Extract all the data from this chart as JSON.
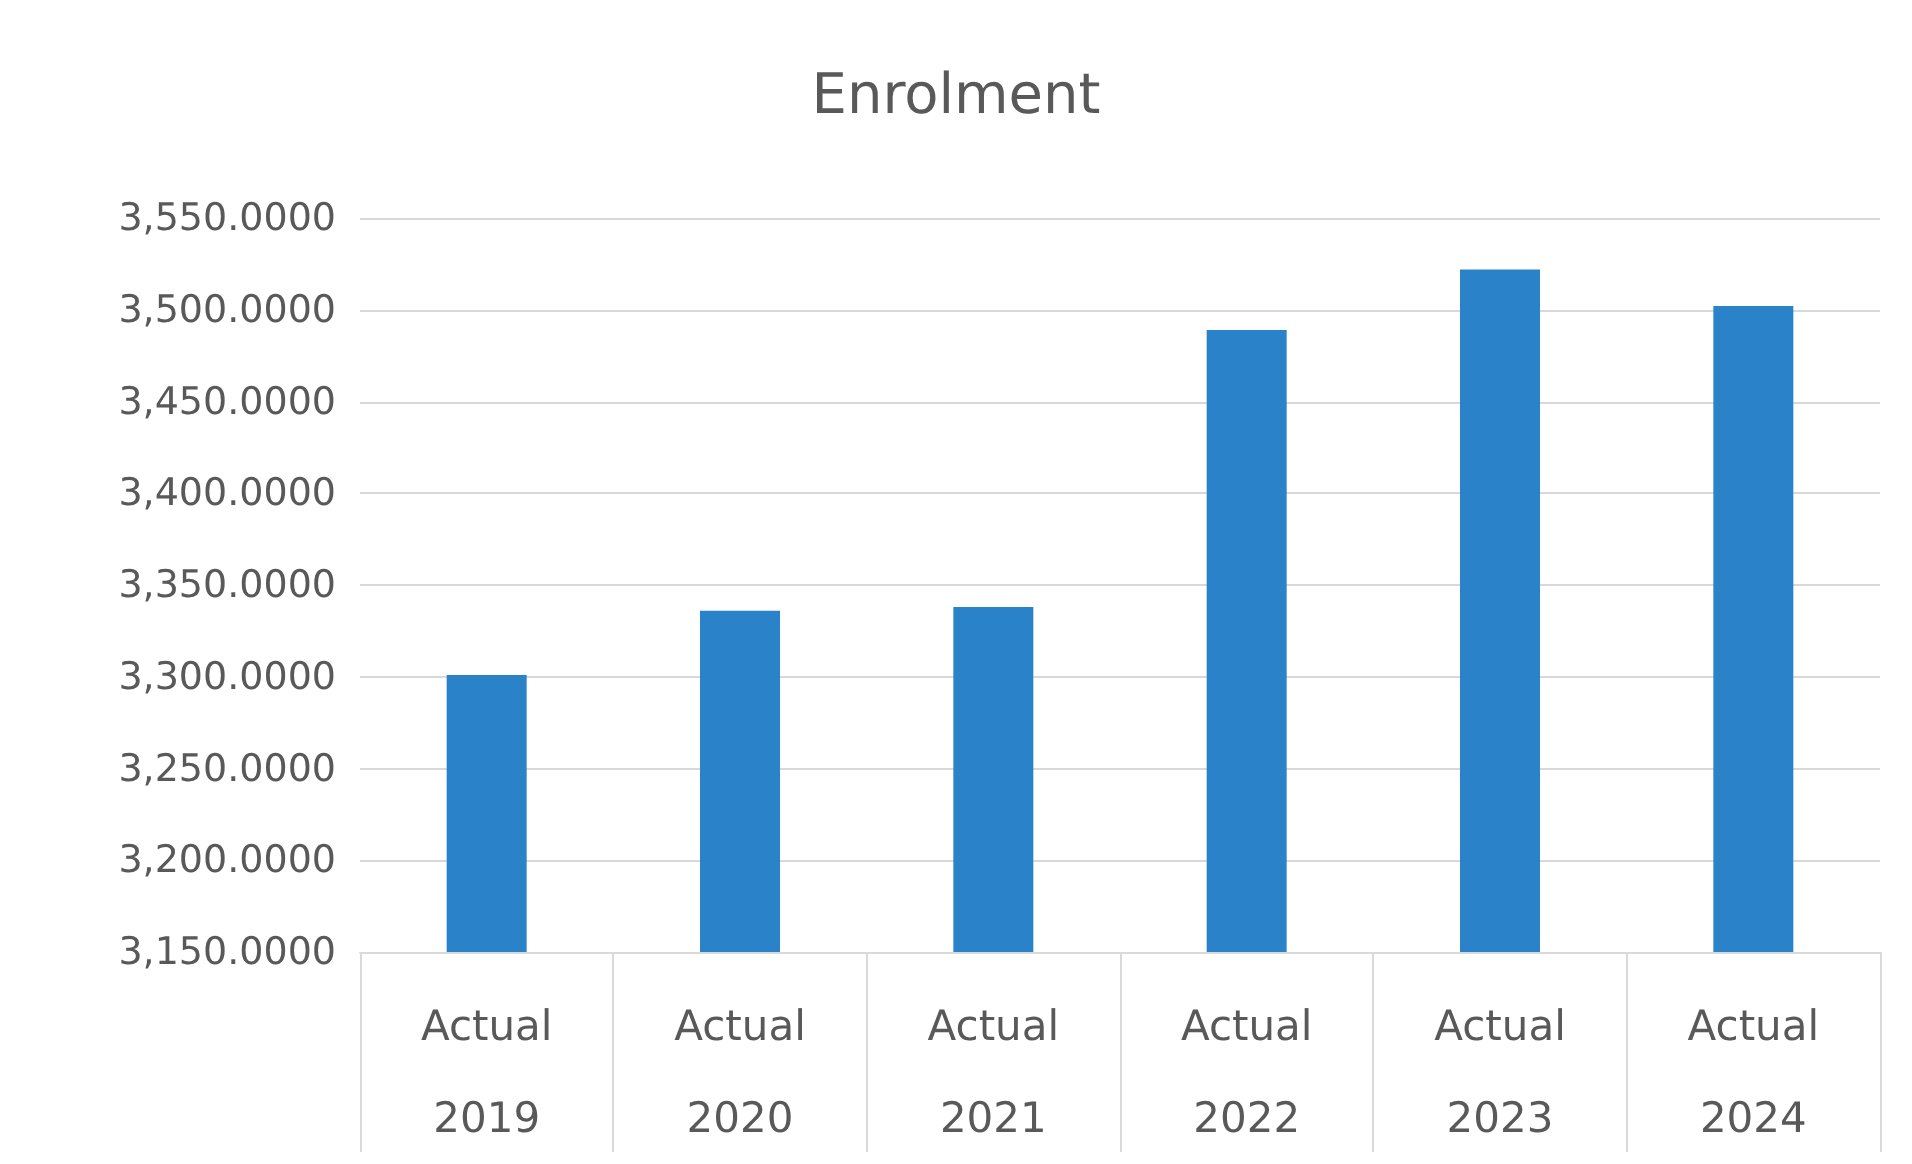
{
  "chart_data": {
    "type": "bar",
    "title": "Enrolment",
    "categories": [
      "Actual\n2019",
      "Actual\n2020",
      "Actual\n2021",
      "Actual\n2022",
      "Actual\n2023",
      "Actual\n2024"
    ],
    "values": [
      3301,
      3336,
      3338,
      3489,
      3522,
      3502
    ],
    "color": "#2a83c8",
    "ylim": [
      3150,
      3550
    ],
    "yticks": [
      {
        "value": 3150,
        "label": "3,150.0000"
      },
      {
        "value": 3200,
        "label": "3,200.0000"
      },
      {
        "value": 3250,
        "label": "3,250.0000"
      },
      {
        "value": 3300,
        "label": "3,300.0000"
      },
      {
        "value": 3350,
        "label": "3,350.0000"
      },
      {
        "value": 3400,
        "label": "3,400.0000"
      },
      {
        "value": 3450,
        "label": "3,450.0000"
      },
      {
        "value": 3500,
        "label": "3,500.0000"
      },
      {
        "value": 3550,
        "label": "3,550.0000"
      }
    ],
    "grid": "y"
  }
}
